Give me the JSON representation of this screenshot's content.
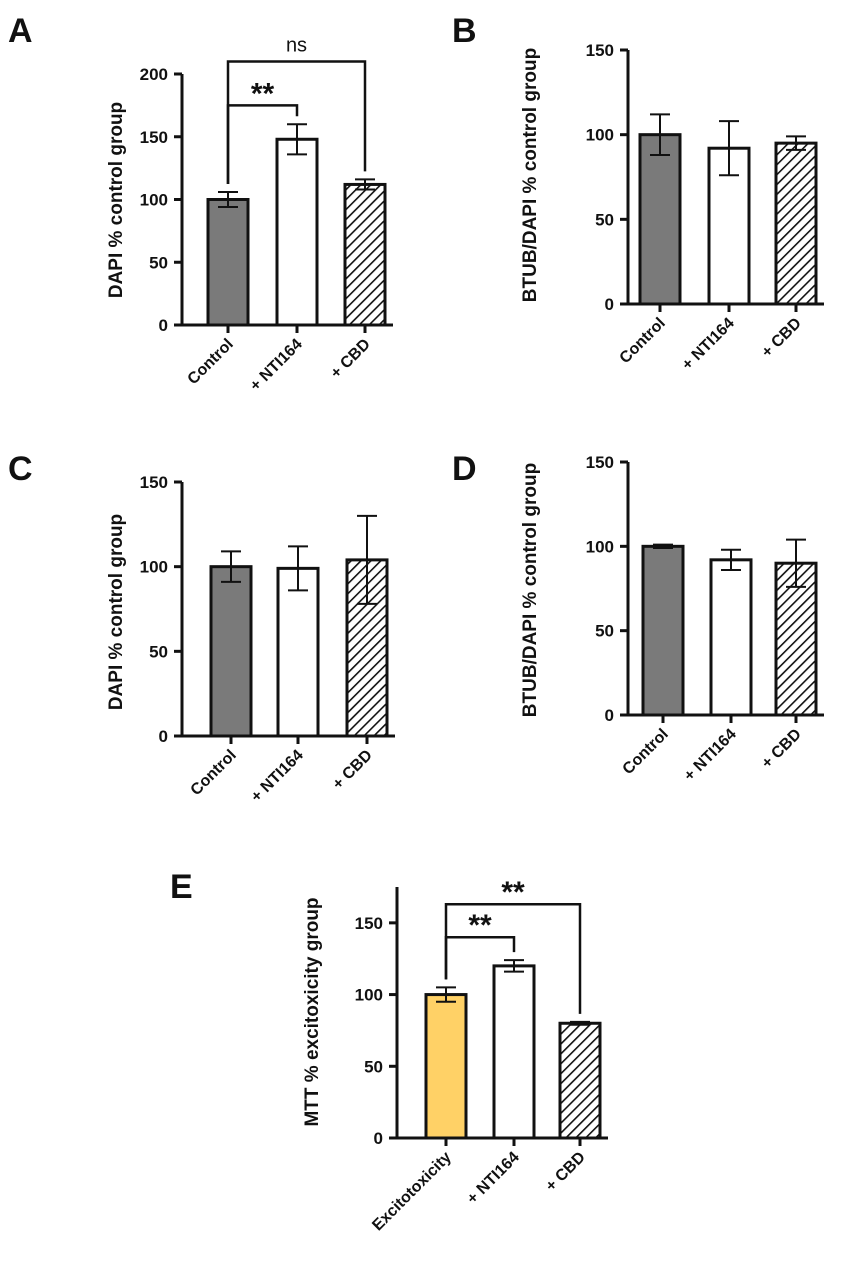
{
  "colors": {
    "control": "#7a7a7a",
    "excitotoxicity": "#ffd166",
    "open": "#ffffff",
    "stroke": "#111111"
  },
  "chart_data": [
    {
      "panel": "A",
      "type": "bar",
      "categories": [
        "Control",
        "+ NTI164",
        "+ CBD"
      ],
      "fills": [
        "solid-gray",
        "white",
        "hatched"
      ],
      "values": [
        100,
        148,
        112
      ],
      "errors": [
        6,
        12,
        4
      ],
      "ylabel": "DAPI % control group",
      "ylim": [
        0,
        200
      ],
      "yticks": [
        0,
        50,
        100,
        150,
        200
      ],
      "annotations": [
        {
          "text": "**",
          "from": 0,
          "to": 1,
          "y": 175
        },
        {
          "text": "ns",
          "from": 0,
          "to": 2,
          "y": 210
        }
      ]
    },
    {
      "panel": "B",
      "type": "bar",
      "categories": [
        "Control",
        "+ NTI164",
        "+ CBD"
      ],
      "fills": [
        "solid-gray",
        "white",
        "hatched"
      ],
      "values": [
        100,
        92,
        95
      ],
      "errors": [
        12,
        16,
        4
      ],
      "ylabel": "BTUB/DAPI % control group",
      "ylim": [
        0,
        150
      ],
      "yticks": [
        0,
        50,
        100,
        150
      ]
    },
    {
      "panel": "C",
      "type": "bar",
      "categories": [
        "Control",
        "+ NTI164",
        "+ CBD"
      ],
      "fills": [
        "solid-gray",
        "white",
        "hatched"
      ],
      "values": [
        100,
        99,
        104
      ],
      "errors": [
        9,
        13,
        26
      ],
      "ylabel": "DAPI % control group",
      "ylim": [
        0,
        150
      ],
      "yticks": [
        0,
        50,
        100,
        150
      ]
    },
    {
      "panel": "D",
      "type": "bar",
      "categories": [
        "Control",
        "+ NTI164",
        "+ CBD"
      ],
      "fills": [
        "solid-gray",
        "white",
        "hatched"
      ],
      "values": [
        100,
        92,
        90
      ],
      "errors": [
        1,
        6,
        14
      ],
      "ylabel": "BTUB/DAPI % control group",
      "ylim": [
        0,
        150
      ],
      "yticks": [
        0,
        50,
        100,
        150
      ]
    },
    {
      "panel": "E",
      "type": "bar",
      "categories": [
        "Excitotoxicity",
        "+ NTI164",
        "+ CBD"
      ],
      "fills": [
        "solid-yellow",
        "white",
        "hatched"
      ],
      "values": [
        100,
        120,
        80
      ],
      "errors": [
        5,
        4,
        1
      ],
      "ylabel": "MTT % excitoxicity group",
      "ylim": [
        0,
        175
      ],
      "yticks": [
        0,
        50,
        100,
        150
      ],
      "annotations": [
        {
          "text": "**",
          "from": 0,
          "to": 1,
          "y": 140
        },
        {
          "text": "**",
          "from": 0,
          "to": 2,
          "y": 163
        }
      ]
    }
  ]
}
